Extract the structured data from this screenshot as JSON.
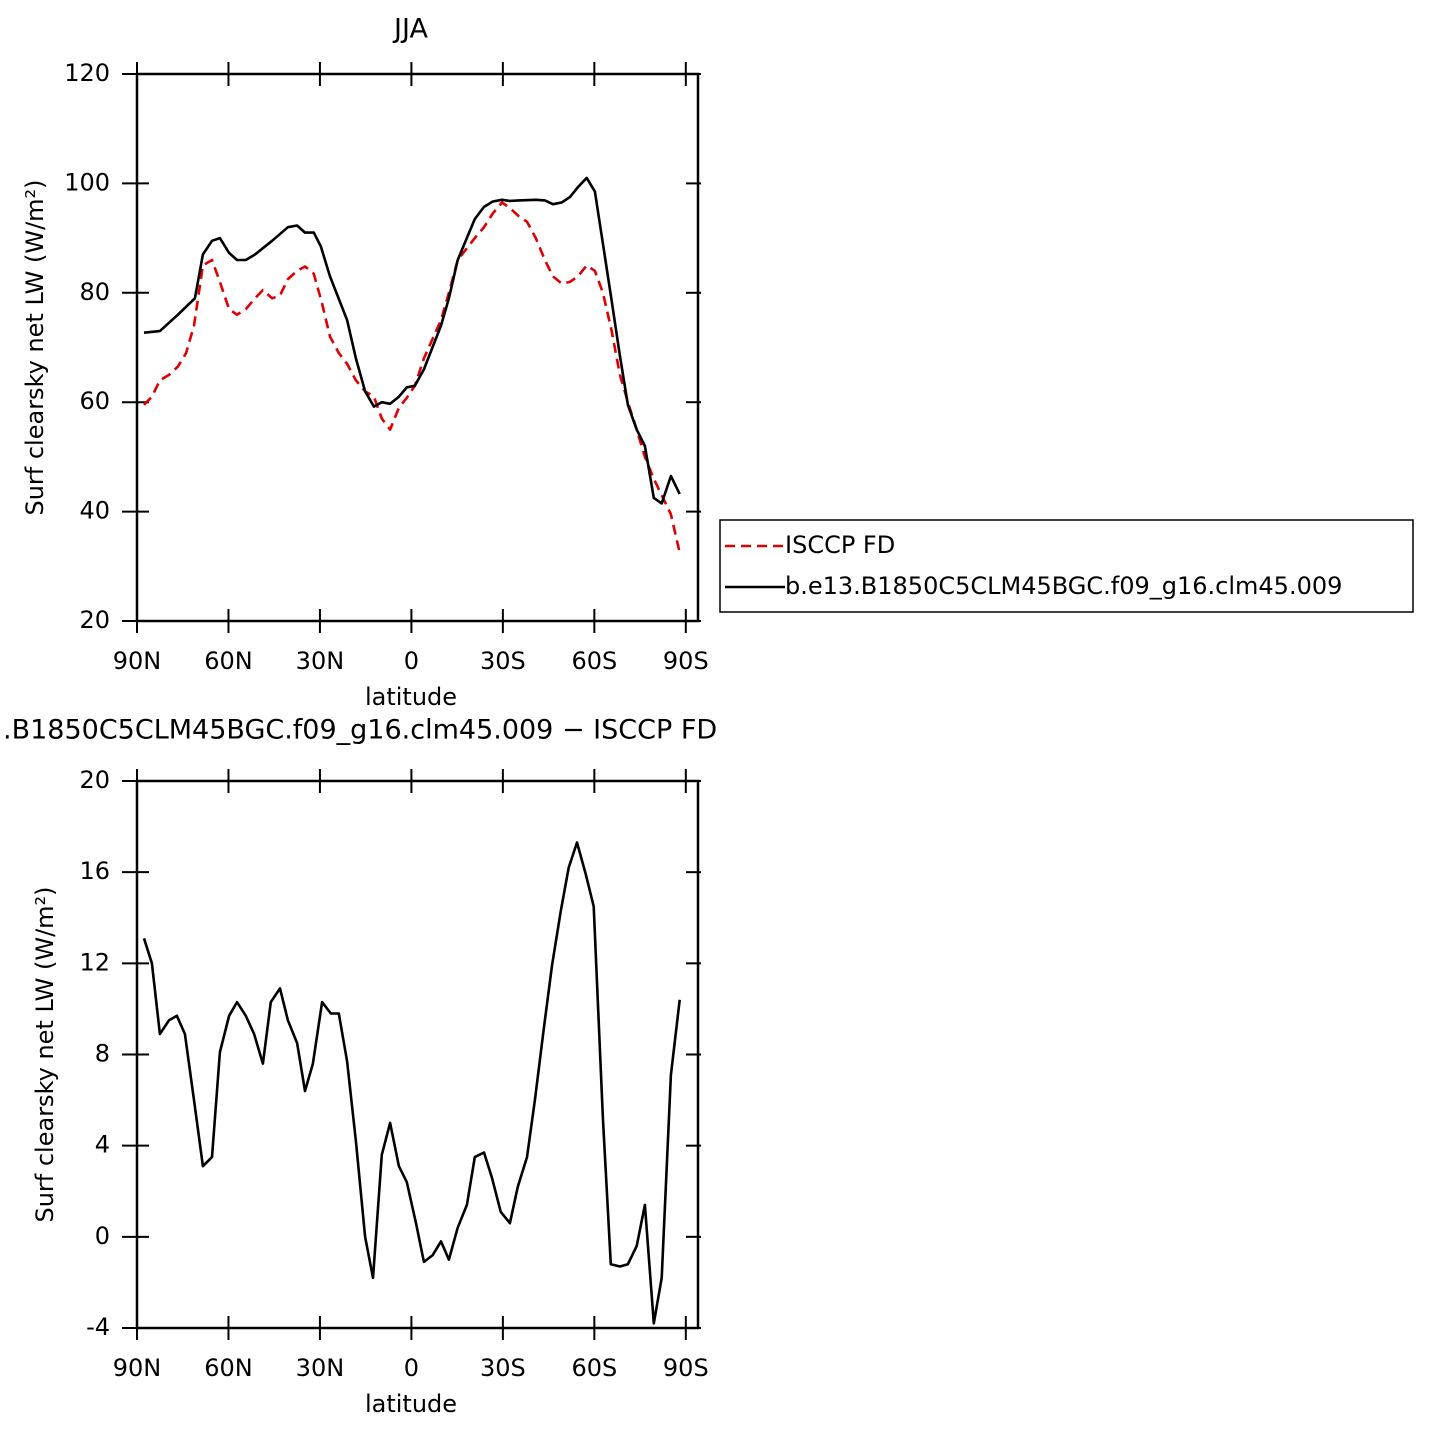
{
  "chart_data": [
    {
      "type": "line",
      "title": "JJA",
      "xlabel": "latitude",
      "ylabel": "Surf clearsky net LW (W/m²)",
      "xlim": [
        90,
        -94
      ],
      "ylim": [
        20,
        120
      ],
      "xticks": [
        {
          "value": 90,
          "label": "90N"
        },
        {
          "value": 60,
          "label": "60N"
        },
        {
          "value": 30,
          "label": "30N"
        },
        0,
        {
          "value": -30,
          "label": "30S"
        },
        {
          "value": -60,
          "label": "60S"
        },
        {
          "value": -90,
          "label": "90S"
        }
      ],
      "yticks": [
        20,
        40,
        60,
        80,
        100,
        120
      ],
      "legend": "right",
      "series": [
        {
          "name": "ISCCP FD",
          "color": "#e00000",
          "line_style": "dashed",
          "x": [
            87.7,
            85.1,
            82.5,
            79.5,
            76.6,
            73.9,
            71.3,
            68.4,
            65.4,
            62.8,
            59.8,
            57.2,
            54.3,
            51.3,
            48.7,
            45.7,
            43.1,
            40.5,
            37.5,
            34.9,
            32.0,
            29.3,
            26.7,
            23.8,
            21.1,
            18.2,
            15.2,
            12.3,
            9.7,
            7.0,
            4.1,
            1.5,
            -1.1,
            -4.1,
            -9.7,
            -12.3,
            -15.2,
            -20.8,
            -23.8,
            -26.7,
            -29.7,
            -32.3,
            -35.2,
            -37.9,
            -40.8,
            -43.8,
            -46.4,
            -49.3,
            -52.0,
            -54.6,
            -57.5,
            -60.2,
            -62.8,
            -65.7,
            -68.4,
            -71.0,
            -73.9,
            -76.6,
            -79.5,
            -82.1,
            -85.1,
            -88.0
          ],
          "values": [
            59.5,
            61,
            64,
            65,
            66.5,
            69,
            74,
            85,
            86,
            82,
            77,
            76,
            77,
            79,
            80.5,
            79,
            79.5,
            82.5,
            84,
            84.8,
            83.5,
            78,
            72,
            69,
            67,
            64,
            62,
            61,
            57,
            55,
            59,
            60.8,
            63,
            68,
            75,
            80,
            86,
            90,
            92,
            94.5,
            96.5,
            95.5,
            94,
            93,
            90,
            86,
            83,
            81.7,
            82,
            83,
            85,
            84,
            80,
            73,
            65,
            60,
            55,
            50,
            46,
            43,
            39.5,
            32.5
          ]
        },
        {
          "name": "b.e13.B1850C5CLM45BGC.f09_g16.clm45.009",
          "color": "#000000",
          "line_style": "solid",
          "x": [
            87.7,
            82.5,
            76.6,
            71.0,
            68.4,
            65.4,
            62.8,
            59.8,
            57.2,
            54.3,
            51.3,
            45.7,
            40.5,
            37.5,
            34.9,
            32.0,
            29.7,
            26.7,
            21.1,
            18.2,
            15.2,
            12.3,
            9.7,
            7.0,
            4.1,
            1.5,
            -1.1,
            -4.1,
            -9.7,
            -12.3,
            -15.2,
            -20.8,
            -23.8,
            -26.7,
            -29.7,
            -32.3,
            -35.2,
            -40.8,
            -43.8,
            -46.4,
            -49.3,
            -52.0,
            -54.6,
            -57.5,
            -60.2,
            -62.8,
            -65.7,
            -68.4,
            -71.0,
            -73.9,
            -76.6,
            -79.5,
            -82.1,
            -85.1,
            -88.0
          ],
          "values": [
            72.7,
            73,
            76,
            79,
            87,
            89.5,
            90,
            87.3,
            86,
            86,
            87,
            89.5,
            92,
            92.3,
            91,
            91,
            88.5,
            83,
            75,
            68,
            62,
            59.2,
            60,
            59.7,
            61,
            62.7,
            63,
            66,
            74,
            79,
            86,
            93.5,
            95.7,
            96.7,
            97,
            96.8,
            96.9,
            97,
            96.9,
            96.2,
            96.5,
            97.5,
            99.3,
            101,
            98.5,
            89,
            78.5,
            68.5,
            59.5,
            55,
            52,
            42.5,
            41.5,
            46.5,
            43.2
          ]
        }
      ]
    },
    {
      "type": "line",
      "title": ".B1850C5CLM45BGC.f09_g16.clm45.009 − ISCCP FD",
      "xlabel": "latitude",
      "ylabel": "Surf clearsky net LW (W/m²)",
      "xlim": [
        90,
        -94
      ],
      "ylim": [
        -4,
        20
      ],
      "xticks": [
        {
          "value": 90,
          "label": "90N"
        },
        {
          "value": 60,
          "label": "60N"
        },
        {
          "value": 30,
          "label": "30N"
        },
        0,
        {
          "value": -30,
          "label": "30S"
        },
        {
          "value": -60,
          "label": "60S"
        },
        {
          "value": -90,
          "label": "90S"
        }
      ],
      "yticks": [
        -4,
        0,
        4,
        8,
        12,
        16,
        20
      ],
      "series": [
        {
          "color": "#000000",
          "line_style": "solid",
          "x": [
            87.7,
            85.1,
            82.5,
            79.5,
            76.9,
            74.3,
            71.3,
            68.4,
            65.4,
            62.8,
            59.8,
            57.2,
            54.3,
            51.6,
            48.7,
            46.1,
            43.1,
            40.5,
            37.5,
            34.9,
            32.3,
            29.3,
            26.4,
            23.8,
            21.1,
            18.2,
            15.2,
            12.6,
            9.7,
            7.0,
            4.1,
            1.5,
            -1.5,
            -4.1,
            -7.0,
            -9.7,
            -12.3,
            -15.2,
            -18.2,
            -20.8,
            -23.8,
            -26.4,
            -29.3,
            -32.3,
            -34.9,
            -37.9,
            -40.5,
            -43.4,
            -46.1,
            -49.0,
            -51.6,
            -54.3,
            -57.2,
            -59.8,
            -62.8,
            -65.4,
            -68.4,
            -71.0,
            -73.9,
            -76.6,
            -79.5,
            -82.1,
            -85.1,
            -88.0
          ],
          "values": [
            13.1,
            12,
            8.9,
            9.5,
            9.7,
            8.9,
            6,
            3.1,
            3.5,
            8.1,
            9.7,
            10.3,
            9.7,
            8.9,
            7.6,
            10.3,
            10.9,
            9.5,
            8.5,
            6.4,
            7.6,
            10.3,
            9.8,
            9.8,
            7.7,
            4.2,
            0,
            -1.8,
            3.6,
            5,
            3.1,
            2.4,
            0.6,
            -1.1,
            -0.8,
            -0.2,
            -1,
            0.4,
            1.4,
            3.5,
            3.7,
            2.6,
            1.1,
            0.6,
            2.2,
            3.5,
            6,
            9.1,
            11.9,
            14.3,
            16.2,
            17.3,
            15.9,
            14.5,
            5.2,
            -1.2,
            -1.3,
            -1.2,
            -0.4,
            1.4,
            -3.8,
            -1.8,
            7.1,
            10.4
          ]
        }
      ]
    }
  ]
}
